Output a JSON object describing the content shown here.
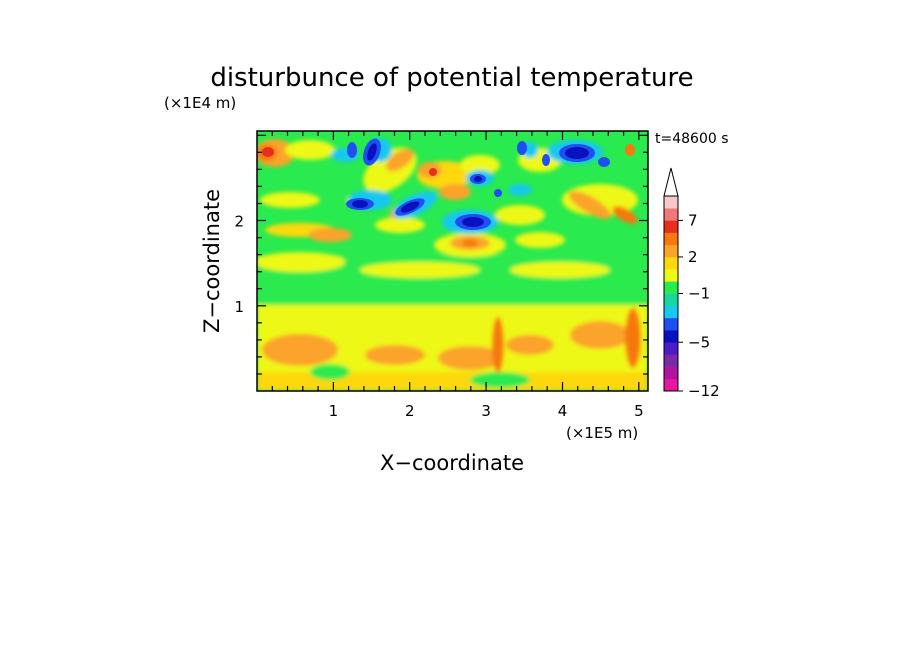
{
  "chart_data": {
    "type": "heatmap",
    "title": "disturbunce of potential temperature",
    "time_label": "t=48600 s",
    "xlabel": "X−coordinate",
    "ylabel": "Z−coordinate",
    "x_unit_label": "(×1E5 m)",
    "y_unit_label": "(×1E4 m)",
    "xlim": [
      0,
      5.12
    ],
    "ylim": [
      0,
      3.05
    ],
    "x_ticks": [
      "1",
      "2",
      "3",
      "4",
      "5"
    ],
    "x_tick_values": [
      1,
      2,
      3,
      4,
      5
    ],
    "y_ticks": [
      "1",
      "2"
    ],
    "y_tick_values": [
      1,
      2
    ],
    "colorbar": {
      "levels": [
        -12,
        -10,
        -8,
        -6,
        -5,
        -4,
        -3,
        -2,
        -1,
        0,
        1,
        2,
        3,
        5,
        7,
        9,
        11
      ],
      "labeled_ticks": [
        {
          "value": 7,
          "label": "7"
        },
        {
          "value": 2,
          "label": "2"
        },
        {
          "value": -1,
          "label": "−1"
        },
        {
          "value": -5,
          "label": "−5"
        },
        {
          "value": -12,
          "label": "−12"
        }
      ],
      "colors": [
        "#e8169f",
        "#b0159f",
        "#7a2aa5",
        "#4c1cc8",
        "#0a11bf",
        "#1f4ff2",
        "#18c8f0",
        "#17d6a0",
        "#29ea4e",
        "#eef814",
        "#fdd80e",
        "#fba32a",
        "#f6780e",
        "#e6301f",
        "#f07878",
        "#f8c7c7"
      ],
      "extend": "max"
    }
  }
}
